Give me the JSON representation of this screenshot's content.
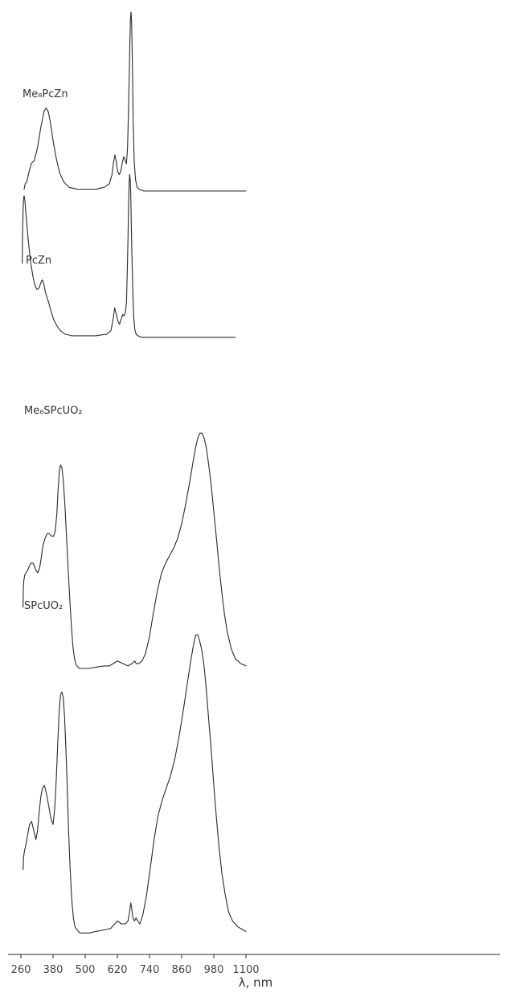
{
  "chart_data": {
    "type": "line",
    "xlabel": "λ, nm",
    "xlim": [
      215,
      1130
    ],
    "x_ticks": [
      260,
      380,
      500,
      620,
      740,
      860,
      980,
      1100
    ],
    "x_tick_labels": [
      "260",
      "380",
      "500",
      "620",
      "740",
      "860",
      "980",
      "1100"
    ],
    "y_axis_shown": false,
    "grid": false,
    "layout": "stacked",
    "series": [
      {
        "name": "Me₈PcZn",
        "x": [
          272,
          276,
          282,
          288,
          298,
          310,
          322,
          334,
          346,
          354,
          362,
          370,
          380,
          392,
          405,
          420,
          440,
          470,
          500,
          540,
          570,
          590,
          600,
          606,
          611,
          616,
          621,
          627,
          633,
          639,
          644,
          649,
          654,
          658,
          662,
          665,
          667,
          669,
          671,
          673,
          676,
          679,
          683,
          688,
          694,
          702,
          720,
          760,
          820,
          900,
          1000,
          1100
        ],
        "y": [
          0.02,
          0.05,
          0.06,
          0.1,
          0.16,
          0.18,
          0.25,
          0.36,
          0.45,
          0.47,
          0.45,
          0.39,
          0.29,
          0.19,
          0.11,
          0.06,
          0.03,
          0.02,
          0.02,
          0.02,
          0.03,
          0.05,
          0.1,
          0.17,
          0.21,
          0.17,
          0.12,
          0.1,
          0.12,
          0.17,
          0.2,
          0.18,
          0.16,
          0.25,
          0.48,
          0.7,
          0.86,
          0.96,
          1.0,
          0.95,
          0.72,
          0.4,
          0.17,
          0.07,
          0.03,
          0.02,
          0.01,
          0.01,
          0.01,
          0.01,
          0.01,
          0.01
        ]
      },
      {
        "name": "PcZn",
        "x": [
          265,
          266,
          268,
          270,
          272,
          275,
          279,
          284,
          290,
          297,
          305,
          312,
          320,
          328,
          334,
          340,
          346,
          352,
          358,
          364,
          372,
          382,
          394,
          408,
          425,
          450,
          490,
          540,
          580,
          596,
          604,
          610,
          616,
          622,
          628,
          634,
          640,
          645,
          650,
          654,
          657,
          660,
          662,
          664,
          666,
          668,
          670,
          672,
          675,
          678,
          681,
          685,
          690,
          697,
          710,
          750,
          820,
          920,
          1010,
          1060
        ],
        "y": [
          0.46,
          0.62,
          0.78,
          0.85,
          0.87,
          0.84,
          0.76,
          0.66,
          0.56,
          0.46,
          0.38,
          0.33,
          0.3,
          0.31,
          0.34,
          0.36,
          0.33,
          0.28,
          0.25,
          0.22,
          0.17,
          0.12,
          0.08,
          0.05,
          0.03,
          0.02,
          0.02,
          0.02,
          0.03,
          0.05,
          0.12,
          0.19,
          0.15,
          0.11,
          0.09,
          0.12,
          0.15,
          0.14,
          0.16,
          0.22,
          0.4,
          0.62,
          0.82,
          0.95,
          1.0,
          0.97,
          0.88,
          0.7,
          0.47,
          0.28,
          0.14,
          0.06,
          0.03,
          0.02,
          0.01,
          0.01,
          0.01,
          0.01,
          0.01,
          0.01
        ]
      },
      {
        "name": "Me₈SPcUO₂",
        "x": [
          268,
          269,
          271,
          274,
          279,
          285,
          292,
          298,
          304,
          310,
          316,
          323,
          330,
          336,
          342,
          350,
          358,
          366,
          374,
          382,
          388,
          394,
          399,
          404,
          408,
          413,
          418,
          424,
          430,
          436,
          442,
          448,
          454,
          460,
          466,
          473,
          480,
          490,
          500,
          515,
          540,
          570,
          590,
          605,
          620,
          640,
          660,
          675,
          685,
          690,
          700,
          712,
          725,
          740,
          755,
          770,
          785,
          800,
          815,
          830,
          845,
          860,
          875,
          890,
          902,
          912,
          920,
          928,
          936,
          944,
          952,
          960,
          970,
          980,
          990,
          1000,
          1010,
          1020,
          1030,
          1045,
          1060,
          1080,
          1100
        ],
        "y": [
          0.26,
          0.33,
          0.37,
          0.39,
          0.4,
          0.41,
          0.43,
          0.44,
          0.44,
          0.43,
          0.41,
          0.4,
          0.42,
          0.46,
          0.51,
          0.54,
          0.56,
          0.56,
          0.55,
          0.55,
          0.57,
          0.64,
          0.74,
          0.82,
          0.84,
          0.83,
          0.78,
          0.68,
          0.55,
          0.42,
          0.3,
          0.19,
          0.1,
          0.05,
          0.025,
          0.015,
          0.01,
          0.01,
          0.01,
          0.01,
          0.015,
          0.02,
          0.02,
          0.03,
          0.04,
          0.03,
          0.02,
          0.03,
          0.04,
          0.03,
          0.03,
          0.04,
          0.07,
          0.14,
          0.24,
          0.33,
          0.4,
          0.44,
          0.47,
          0.5,
          0.54,
          0.6,
          0.68,
          0.77,
          0.85,
          0.91,
          0.95,
          0.97,
          0.97,
          0.95,
          0.91,
          0.85,
          0.76,
          0.65,
          0.54,
          0.42,
          0.32,
          0.23,
          0.16,
          0.09,
          0.05,
          0.03,
          0.02
        ]
      },
      {
        "name": "SPcUO₂",
        "x": [
          268,
          270,
          273,
          278,
          284,
          292,
          300,
          308,
          316,
          322,
          328,
          334,
          340,
          348,
          356,
          364,
          372,
          380,
          386,
          392,
          398,
          403,
          408,
          413,
          418,
          423,
          428,
          433,
          438,
          444,
          450,
          456,
          462,
          470,
          480,
          495,
          515,
          540,
          570,
          595,
          610,
          620,
          635,
          650,
          660,
          666,
          670,
          674,
          678,
          684,
          690,
          696,
          704,
          715,
          728,
          742,
          757,
          772,
          787,
          802,
          818,
          835,
          852,
          868,
          883,
          895,
          905,
          913,
          920,
          927,
          935,
          943,
          951,
          960,
          970,
          980,
          990,
          1000,
          1010,
          1022,
          1035,
          1050,
          1070,
          1090,
          1100
        ],
        "y": [
          0.22,
          0.26,
          0.28,
          0.3,
          0.33,
          0.37,
          0.38,
          0.35,
          0.32,
          0.35,
          0.41,
          0.46,
          0.49,
          0.5,
          0.47,
          0.43,
          0.39,
          0.37,
          0.42,
          0.52,
          0.65,
          0.75,
          0.8,
          0.81,
          0.79,
          0.73,
          0.62,
          0.49,
          0.35,
          0.22,
          0.12,
          0.06,
          0.03,
          0.02,
          0.01,
          0.01,
          0.01,
          0.015,
          0.02,
          0.025,
          0.04,
          0.05,
          0.04,
          0.04,
          0.05,
          0.08,
          0.11,
          0.09,
          0.06,
          0.05,
          0.06,
          0.05,
          0.04,
          0.07,
          0.13,
          0.22,
          0.32,
          0.4,
          0.45,
          0.49,
          0.53,
          0.59,
          0.67,
          0.76,
          0.85,
          0.92,
          0.97,
          1.0,
          1.0,
          0.98,
          0.95,
          0.9,
          0.83,
          0.73,
          0.62,
          0.5,
          0.39,
          0.29,
          0.21,
          0.14,
          0.08,
          0.05,
          0.03,
          0.02,
          0.015
        ]
      }
    ]
  }
}
